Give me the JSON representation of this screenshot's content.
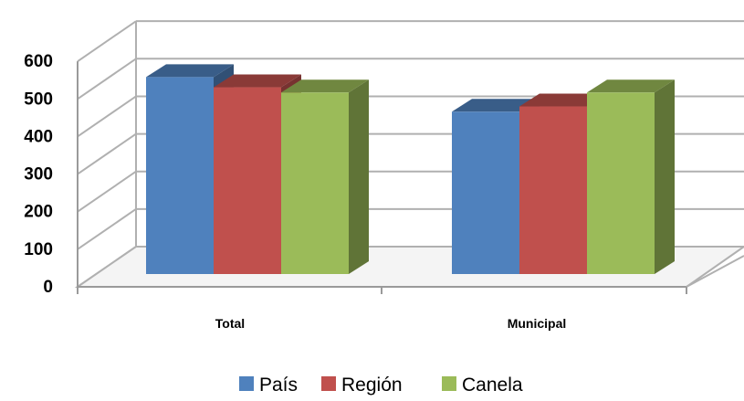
{
  "chart_data": {
    "type": "bar",
    "style": "3d-clustered-column",
    "categories": [
      "Total",
      "Municipal"
    ],
    "series": [
      {
        "name": "País",
        "values": [
          524,
          432
        ],
        "color": "#4F81BD"
      },
      {
        "name": "Región",
        "values": [
          497,
          446
        ],
        "color": "#C0504D"
      },
      {
        "name": "Canela",
        "values": [
          483,
          483
        ],
        "color": "#9BBB59"
      }
    ],
    "y_ticks": [
      "0",
      "100",
      "200",
      "300",
      "400",
      "500",
      "600"
    ],
    "ylim": [
      0,
      600
    ],
    "grid": true,
    "legend": "bottom"
  }
}
